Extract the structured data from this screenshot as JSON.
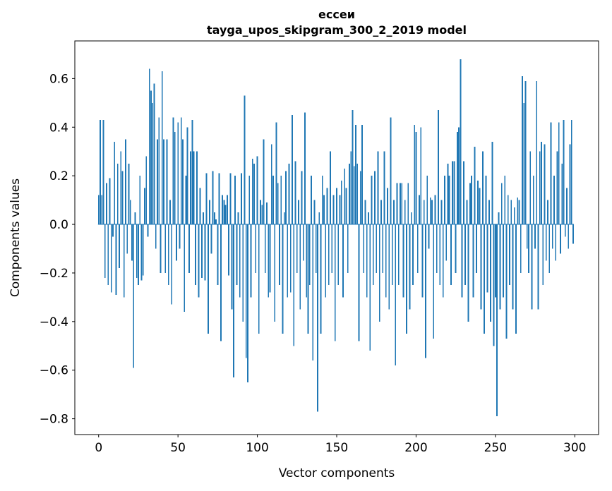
{
  "chart_data": {
    "type": "bar",
    "title": "ессеи",
    "subtitle": "tayga_upos_skipgram_300_2_2019 model",
    "xlabel": "Vector components",
    "ylabel": "Components values",
    "bar_color": "#1f77b4",
    "axis_color": "#000000",
    "x_ticks": [
      0,
      50,
      100,
      150,
      200,
      250,
      300
    ],
    "y_ticks": [
      0.6,
      0.4,
      0.2,
      0.0,
      -0.2,
      -0.4,
      -0.6,
      -0.8
    ],
    "xlim": [
      -15,
      315
    ],
    "ylim": [
      -0.865,
      0.755
    ],
    "grid": false,
    "legend": "none",
    "values": [
      0.12,
      0.43,
      0.12,
      0.43,
      -0.22,
      0.17,
      -0.25,
      0.19,
      -0.28,
      -0.05,
      0.34,
      -0.29,
      0.25,
      -0.18,
      0.3,
      0.22,
      -0.3,
      0.35,
      -0.12,
      0.25,
      0.1,
      -0.15,
      -0.59,
      0.05,
      -0.22,
      -0.25,
      0.2,
      -0.23,
      -0.21,
      0.15,
      0.28,
      -0.05,
      0.64,
      0.55,
      0.5,
      0.58,
      -0.1,
      0.35,
      0.44,
      -0.2,
      0.63,
      0.35,
      -0.2,
      0.35,
      -0.25,
      0.1,
      -0.33,
      0.44,
      0.38,
      -0.15,
      0.42,
      -0.1,
      0.44,
      0.35,
      -0.36,
      0.2,
      0.4,
      -0.2,
      0.3,
      0.43,
      0.3,
      -0.25,
      0.3,
      -0.3,
      0.15,
      -0.22,
      0.05,
      -0.23,
      0.21,
      -0.45,
      0.1,
      -0.12,
      0.22,
      0.05,
      0.02,
      -0.25,
      0.21,
      -0.48,
      0.12,
      0.1,
      0.08,
      0.12,
      -0.21,
      0.21,
      -0.35,
      -0.63,
      0.2,
      -0.25,
      0.05,
      -0.3,
      0.21,
      -0.4,
      0.53,
      -0.55,
      -0.65,
      0.2,
      -0.3,
      0.27,
      0.25,
      -0.2,
      0.28,
      -0.45,
      0.1,
      0.08,
      0.35,
      -0.2,
      0.09,
      -0.3,
      -0.28,
      0.33,
      0.2,
      -0.4,
      0.42,
      0.17,
      -0.25,
      0.2,
      -0.45,
      0.05,
      0.22,
      -0.3,
      0.25,
      -0.28,
      0.45,
      -0.5,
      0.26,
      -0.2,
      0.1,
      -0.35,
      0.22,
      -0.15,
      0.46,
      -0.3,
      -0.45,
      -0.25,
      0.2,
      -0.56,
      0.1,
      -0.2,
      -0.77,
      0.05,
      -0.45,
      0.2,
      0.12,
      -0.3,
      0.15,
      -0.25,
      0.3,
      -0.2,
      0.12,
      -0.48,
      0.15,
      -0.25,
      0.12,
      0.18,
      -0.3,
      0.23,
      0.15,
      -0.2,
      0.25,
      0.3,
      0.47,
      0.24,
      0.41,
      0.25,
      -0.48,
      0.22,
      0.41,
      -0.2,
      0.1,
      -0.3,
      0.05,
      -0.52,
      0.2,
      -0.25,
      0.22,
      -0.2,
      0.3,
      -0.4,
      0.1,
      -0.2,
      0.3,
      -0.3,
      0.15,
      -0.35,
      0.44,
      -0.25,
      0.1,
      -0.58,
      0.17,
      -0.25,
      0.17,
      0.17,
      -0.3,
      0.1,
      -0.45,
      0.17,
      -0.35,
      0.05,
      -0.25,
      0.41,
      0.38,
      -0.2,
      0.12,
      0.4,
      -0.3,
      0.1,
      -0.55,
      0.2,
      -0.1,
      0.11,
      0.1,
      -0.47,
      0.12,
      -0.2,
      0.47,
      -0.25,
      0.1,
      -0.3,
      0.2,
      -0.15,
      0.25,
      0.2,
      -0.25,
      0.26,
      0.26,
      -0.2,
      0.38,
      0.4,
      0.68,
      -0.3,
      0.26,
      -0.25,
      0.1,
      -0.4,
      0.17,
      0.2,
      -0.3,
      0.32,
      -0.2,
      0.18,
      0.15,
      -0.35,
      0.3,
      -0.45,
      0.2,
      -0.28,
      0.1,
      -0.4,
      0.34,
      -0.5,
      -0.3,
      -0.79,
      0.05,
      -0.35,
      0.17,
      -0.3,
      0.2,
      -0.47,
      0.12,
      -0.25,
      0.1,
      -0.35,
      0.07,
      -0.45,
      0.11,
      0.1,
      -0.2,
      0.61,
      0.5,
      0.59,
      -0.1,
      -0.2,
      0.3,
      -0.35,
      0.2,
      -0.1,
      0.59,
      -0.35,
      0.3,
      0.34,
      -0.25,
      0.33,
      -0.15,
      0.1,
      -0.2,
      0.42,
      -0.1,
      0.2,
      -0.15,
      0.3,
      0.42,
      -0.12,
      0.25,
      0.43,
      -0.05,
      0.15,
      -0.1,
      0.33,
      0.43,
      -0.08
    ]
  }
}
